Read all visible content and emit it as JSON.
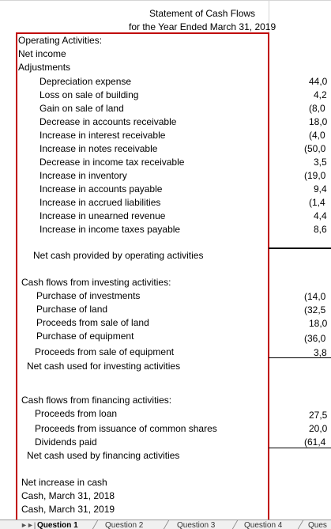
{
  "title": {
    "line1": "Statement of Cash Flows",
    "line2": "for the Year Ended March 31, 2019"
  },
  "operating": {
    "header": "Operating Activities:",
    "net_income": "Net income",
    "adjustments": "Adjustments",
    "items": [
      {
        "label": "Depreciation expense",
        "value": "44,0"
      },
      {
        "label": "Loss on sale of building",
        "value": "4,2"
      },
      {
        "label": "Gain on sale of land",
        "value": "(8,0"
      },
      {
        "label": "Decrease in accounts receivable",
        "value": "18,0"
      },
      {
        "label": "Increase in interest receivable",
        "value": "(4,0"
      },
      {
        "label": "Increase in notes receivable",
        "value": "(50,0"
      },
      {
        "label": "Decrease in income tax receivable",
        "value": "3,5"
      },
      {
        "label": "Increase in inventory",
        "value": "(19,0"
      },
      {
        "label": "Increase in accounts payable",
        "value": "9,4"
      },
      {
        "label": "Increase in accrued liabilities",
        "value": "(1,4"
      },
      {
        "label": "Increase in unearned revenue",
        "value": "4,4"
      },
      {
        "label": "Increase in income taxes payable",
        "value": "8,6"
      }
    ],
    "net_cash": "Net cash provided by operating activities"
  },
  "investing": {
    "header": "Cash flows from investing activities:",
    "items": [
      {
        "label": "Purchase of investments",
        "value": "(14,0"
      },
      {
        "label": "Purchase of land",
        "value": "(32,5"
      },
      {
        "label": "Proceeds from sale of land",
        "value": "18,0"
      },
      {
        "label": "Purchase of equipment",
        "value": "(36,0"
      },
      {
        "label": "Proceeds from sale of equipment",
        "value": "3,8"
      }
    ],
    "net_cash": "Net cash used for investing activities"
  },
  "financing": {
    "header": "Cash flows from financing activities:",
    "items": [
      {
        "label": "Proceeds from loan",
        "value": "27,5"
      },
      {
        "label": "Proceeds from issuance of common shares",
        "value": "20,0"
      },
      {
        "label": "Dividends paid",
        "value": "(61,4"
      }
    ],
    "net_cash": "Net cash used by financing activities"
  },
  "summary": {
    "net_increase": "Net increase in cash",
    "cash_2018": "Cash, March 31, 2018",
    "cash_2019": "Cash, March 31, 2019"
  },
  "tabs": [
    "Question 1",
    "Question 2",
    "Question 3",
    "Question 4",
    "Ques"
  ],
  "colors": {
    "border": "#c00000",
    "grid": "#d4d4d4"
  }
}
